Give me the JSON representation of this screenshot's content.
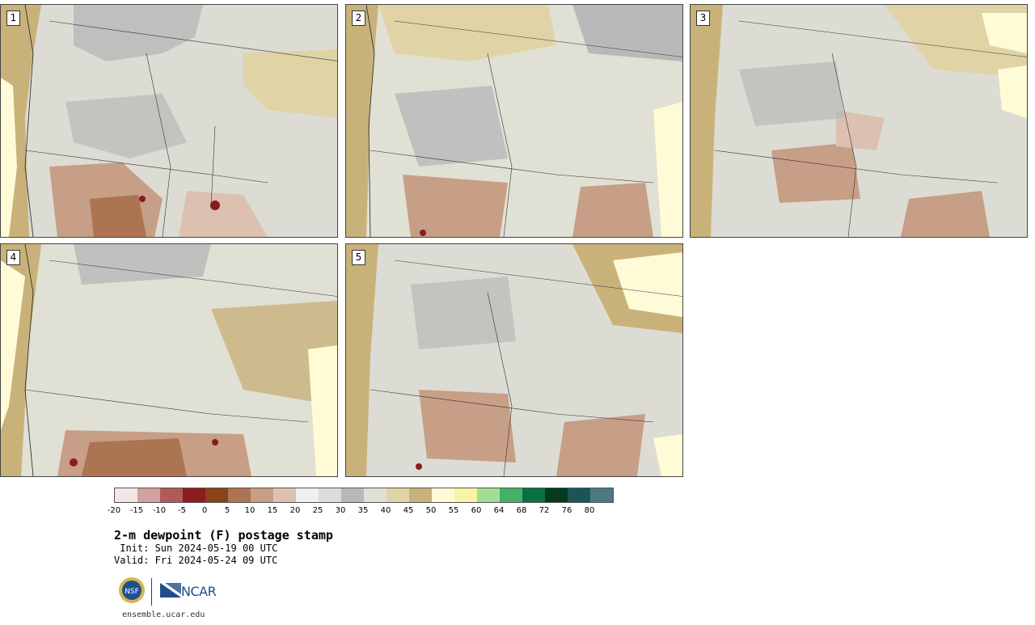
{
  "panels": [
    {
      "label": "1"
    },
    {
      "label": "2"
    },
    {
      "label": "3"
    },
    {
      "label": "4"
    },
    {
      "label": "5"
    }
  ],
  "colorbar": {
    "colors": [
      "#f2e6e6",
      "#d4a0a0",
      "#b05a5a",
      "#8c1a1f",
      "#8a4314",
      "#ad7452",
      "#c79e86",
      "#dcc1b0",
      "#f0f0f0",
      "#dcdcdc",
      "#b8b8b8",
      "#e0e0d4",
      "#e0d4a6",
      "#c9b27a",
      "#fffbd6",
      "#f7f5a3",
      "#a4dd94",
      "#46b068",
      "#0a7040",
      "#033a20",
      "#1a5656",
      "#4d7a80"
    ],
    "tick_labels": [
      "-20",
      "-15",
      "-10",
      "-5",
      "0",
      "5",
      "10",
      "15",
      "20",
      "25",
      "30",
      "35",
      "40",
      "45",
      "50",
      "55",
      "60",
      "64",
      "68",
      "72",
      "76",
      "80"
    ]
  },
  "title": "2-m dewpoint (F) postage stamp",
  "init": " Init: Sun 2024-05-19 00 UTC",
  "valid": "Valid: Fri 2024-05-24 09 UTC",
  "logos": {
    "nsf": "NSF",
    "ncar": "NCAR"
  },
  "site": "ensemble.ucar.edu"
}
